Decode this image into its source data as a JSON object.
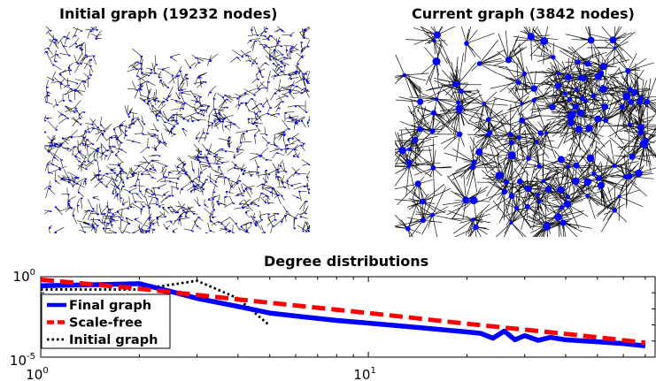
{
  "panels": {
    "initial_title": "Initial graph (19232 nodes)",
    "current_title": "Current graph (3842 nodes)"
  },
  "colors": {
    "node": "#0000ff",
    "edge": "#111111",
    "final": "#0000ff",
    "scalefree": "#ff0000",
    "initial": "#000000"
  },
  "chart_data": {
    "type": "line",
    "title": "Degree distributions",
    "xlabel": "",
    "ylabel": "",
    "x_scale": "log",
    "y_scale": "log",
    "xlim": [
      1,
      75
    ],
    "ylim": [
      1e-05,
      1
    ],
    "x_ticks": [
      1,
      10
    ],
    "y_ticks": [
      1e-05,
      1
    ],
    "x_tick_labels": [
      {
        "base": "10",
        "exp": "0"
      },
      {
        "base": "10",
        "exp": "1"
      }
    ],
    "y_tick_labels": [
      {
        "base": "10",
        "exp": "-5"
      },
      {
        "base": "10",
        "exp": "0"
      }
    ],
    "grid": false,
    "legend_position": "lower-left",
    "series": [
      {
        "name": "Final graph",
        "style": "solid",
        "x": [
          1,
          1.5,
          2,
          2.5,
          3,
          4,
          5,
          6,
          8,
          10,
          13,
          16,
          20,
          22,
          24,
          26,
          28,
          30,
          33,
          36,
          40,
          50,
          60,
          70
        ],
        "y": [
          0.27,
          0.32,
          0.37,
          0.12,
          0.045,
          0.014,
          0.0055,
          0.0036,
          0.0019,
          0.0013,
          0.00082,
          0.00055,
          0.00037,
          0.0003,
          0.00015,
          0.00042,
          0.00012,
          0.00022,
          0.00011,
          0.00017,
          0.00012,
          9e-05,
          7e-05,
          5e-05
        ]
      },
      {
        "name": "Scale-free",
        "style": "dashed",
        "x": [
          1,
          2,
          5,
          10,
          20,
          40,
          70
        ],
        "y": [
          0.65,
          0.18,
          0.024,
          0.0055,
          0.0012,
          0.00028,
          8e-05
        ]
      },
      {
        "name": "Initial graph",
        "style": "dotted",
        "x": [
          1,
          2,
          3,
          4,
          5
        ],
        "y": [
          0.16,
          0.16,
          0.56,
          0.045,
          0.0009
        ]
      }
    ]
  }
}
